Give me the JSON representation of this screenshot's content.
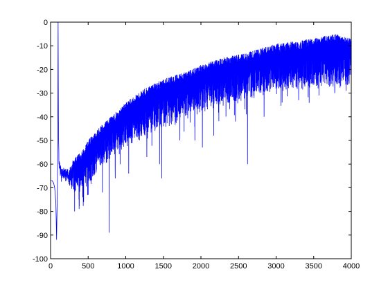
{
  "chart_data": {
    "type": "line",
    "xlim": [
      0,
      4000
    ],
    "ylim": [
      -100,
      0
    ],
    "grid": false,
    "legend": "none",
    "line_color": "#0000ff",
    "x_ticks": [
      0,
      500,
      1000,
      1500,
      2000,
      2500,
      3000,
      3500,
      4000
    ],
    "y_ticks": [
      0,
      -10,
      -20,
      -30,
      -40,
      -50,
      -60,
      -70,
      -80,
      -90,
      -100
    ],
    "x_tick_labels": [
      "0",
      "500",
      "1000",
      "1500",
      "2000",
      "2500",
      "3000",
      "3500",
      "4000"
    ],
    "y_tick_labels": [
      "0",
      "-10",
      "-20",
      "-30",
      "-40",
      "-50",
      "-60",
      "-70",
      "-80",
      "-90",
      "-100"
    ],
    "series": [
      {
        "points_x": [
          0,
          20,
          40,
          55,
          70,
          80,
          88,
          95,
          100,
          105,
          110,
          115,
          120,
          130,
          150,
          200,
          250,
          300,
          400,
          500,
          600,
          700,
          800,
          1000,
          1200,
          1500,
          1800,
          2000,
          2300,
          2600,
          3000,
          3300,
          3600,
          3800,
          4000
        ],
        "upper_envelope": [
          -67,
          -67,
          -68,
          -70,
          -76,
          -92,
          -75,
          -60,
          0,
          -47,
          -55,
          -58,
          -60,
          -61,
          -62,
          -62,
          -62,
          -58,
          -55,
          -50,
          -46,
          -43,
          -40,
          -34,
          -29,
          -24,
          -21,
          -18,
          -15,
          -13,
          -9,
          -8,
          -6,
          -5,
          -7
        ],
        "lower_envelope": [
          -67,
          -67,
          -68,
          -70,
          -76,
          -92,
          -75,
          -60,
          -60,
          -62,
          -63,
          -64,
          -64,
          -65,
          -66,
          -68,
          -70,
          -72,
          -73,
          -70,
          -66,
          -62,
          -58,
          -54,
          -50,
          -46,
          -42,
          -39,
          -36,
          -34,
          -30,
          -29,
          -28,
          -28,
          -30
        ],
        "spikes": [
          {
            "x": 320,
            "y": -80
          },
          {
            "x": 380,
            "y": -79
          },
          {
            "x": 440,
            "y": -76
          },
          {
            "x": 500,
            "y": -73
          },
          {
            "x": 690,
            "y": -72
          },
          {
            "x": 780,
            "y": -89
          },
          {
            "x": 860,
            "y": -66
          },
          {
            "x": 1040,
            "y": -64
          },
          {
            "x": 1280,
            "y": -57
          },
          {
            "x": 1450,
            "y": -60
          },
          {
            "x": 1480,
            "y": -66
          },
          {
            "x": 1720,
            "y": -50
          },
          {
            "x": 1920,
            "y": -50
          },
          {
            "x": 2020,
            "y": -53
          },
          {
            "x": 2170,
            "y": -48
          },
          {
            "x": 2460,
            "y": -42
          },
          {
            "x": 2620,
            "y": -60
          },
          {
            "x": 2840,
            "y": -40
          },
          {
            "x": 3080,
            "y": -34
          },
          {
            "x": 3300,
            "y": -33
          },
          {
            "x": 3570,
            "y": -31
          },
          {
            "x": 3780,
            "y": -30
          },
          {
            "x": 3930,
            "y": -29
          }
        ]
      }
    ]
  }
}
